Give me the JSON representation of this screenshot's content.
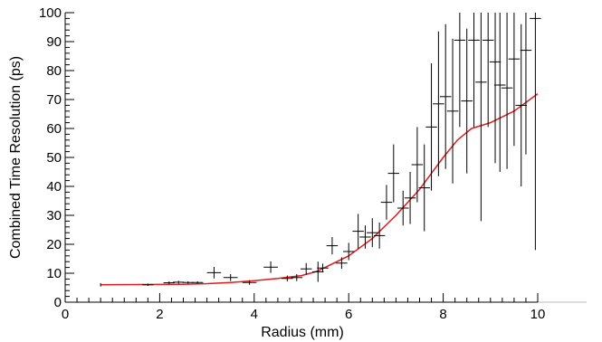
{
  "chart_data": {
    "type": "scatter",
    "title": "",
    "xlabel": "Radius (mm)",
    "ylabel": "Combined Time Resolution (ps)",
    "xlim": [
      0,
      10
    ],
    "ylim": [
      0,
      100
    ],
    "x_ticks": [
      0,
      2,
      4,
      6,
      8,
      10
    ],
    "y_ticks": [
      0,
      10,
      20,
      30,
      40,
      50,
      60,
      70,
      80,
      90,
      100
    ],
    "grid": false,
    "legend": "none",
    "colors": {
      "data": "#000000",
      "fit": "#e41a1c",
      "axis": "#000000"
    },
    "series": [
      {
        "style": "points-with-error-bars",
        "points": [
          {
            "x": 0.75,
            "y": 6.0,
            "xerr": 0.0,
            "yerr": 0.6
          },
          {
            "x": 1.75,
            "y": 6.0,
            "xerr": 0.12,
            "yerr": 0.4
          },
          {
            "x": 2.2,
            "y": 6.7,
            "xerr": 0.12,
            "yerr": 0.5
          },
          {
            "x": 2.4,
            "y": 6.9,
            "xerr": 0.12,
            "yerr": 0.5
          },
          {
            "x": 2.6,
            "y": 6.8,
            "xerr": 0.12,
            "yerr": 0.4
          },
          {
            "x": 2.8,
            "y": 6.8,
            "xerr": 0.12,
            "yerr": 0.4
          },
          {
            "x": 3.15,
            "y": 10.2,
            "xerr": 0.15,
            "yerr": 2.0
          },
          {
            "x": 3.5,
            "y": 8.5,
            "xerr": 0.15,
            "yerr": 1.2
          },
          {
            "x": 3.9,
            "y": 6.8,
            "xerr": 0.15,
            "yerr": 0.8
          },
          {
            "x": 4.35,
            "y": 12.1,
            "xerr": 0.15,
            "yerr": 2.0
          },
          {
            "x": 4.7,
            "y": 8.2,
            "xerr": 0.12,
            "yerr": 1.0
          },
          {
            "x": 4.9,
            "y": 8.5,
            "xerr": 0.12,
            "yerr": 1.2
          },
          {
            "x": 5.1,
            "y": 11.5,
            "xerr": 0.12,
            "yerr": 2.0
          },
          {
            "x": 5.35,
            "y": 10.5,
            "xerr": 0.12,
            "yerr": 3.5
          },
          {
            "x": 5.45,
            "y": 11.8,
            "xerr": 0.12,
            "yerr": 1.5
          },
          {
            "x": 5.65,
            "y": 19.5,
            "xerr": 0.12,
            "yerr": 3.0
          },
          {
            "x": 5.85,
            "y": 13.5,
            "xerr": 0.12,
            "yerr": 2.0
          },
          {
            "x": 6.0,
            "y": 17.5,
            "xerr": 0.12,
            "yerr": 3.0
          },
          {
            "x": 6.2,
            "y": 24.5,
            "xerr": 0.12,
            "yerr": 6.0
          },
          {
            "x": 6.35,
            "y": 22.5,
            "xerr": 0.12,
            "yerr": 4.0
          },
          {
            "x": 6.5,
            "y": 24.0,
            "xerr": 0.12,
            "yerr": 5.0
          },
          {
            "x": 6.65,
            "y": 23.0,
            "xerr": 0.12,
            "yerr": 4.5
          },
          {
            "x": 6.8,
            "y": 34.5,
            "xerr": 0.12,
            "yerr": 6.0
          },
          {
            "x": 6.95,
            "y": 44.5,
            "xerr": 0.12,
            "yerr": 10.0
          },
          {
            "x": 7.15,
            "y": 32.5,
            "xerr": 0.12,
            "yerr": 6.0
          },
          {
            "x": 7.3,
            "y": 36.0,
            "xerr": 0.12,
            "yerr": 9.0
          },
          {
            "x": 7.45,
            "y": 47.5,
            "xerr": 0.12,
            "yerr": 13.0
          },
          {
            "x": 7.6,
            "y": 39.5,
            "xerr": 0.12,
            "yerr": 15.0
          },
          {
            "x": 7.75,
            "y": 60.5,
            "xerr": 0.12,
            "yerr": 22.0
          },
          {
            "x": 7.9,
            "y": 68.5,
            "xerr": 0.12,
            "yerr": 25.0
          },
          {
            "x": 8.05,
            "y": 71.0,
            "xerr": 0.12,
            "yerr": 25.0
          },
          {
            "x": 8.2,
            "y": 66.0,
            "xerr": 0.12,
            "yerr": 25.0
          },
          {
            "x": 8.35,
            "y": 90.5,
            "xerr": 0.12,
            "yerr": 30.0
          },
          {
            "x": 8.5,
            "y": 69.5,
            "xerr": 0.12,
            "yerr": 25.0
          },
          {
            "x": 8.65,
            "y": 90.5,
            "xerr": 0.12,
            "yerr": 30.0
          },
          {
            "x": 8.8,
            "y": 76.0,
            "xerr": 0.12,
            "yerr": 48.0
          },
          {
            "x": 8.95,
            "y": 90.5,
            "xerr": 0.12,
            "yerr": 30.0
          },
          {
            "x": 9.1,
            "y": 83.0,
            "xerr": 0.12,
            "yerr": 35.0
          },
          {
            "x": 9.2,
            "y": 75.0,
            "xerr": 0.12,
            "yerr": 30.0
          },
          {
            "x": 9.35,
            "y": 74.0,
            "xerr": 0.12,
            "yerr": 28.0
          },
          {
            "x": 9.5,
            "y": 84.0,
            "xerr": 0.12,
            "yerr": 30.0
          },
          {
            "x": 9.65,
            "y": 68.0,
            "xerr": 0.12,
            "yerr": 28.0
          },
          {
            "x": 9.75,
            "y": 87.0,
            "xerr": 0.12,
            "yerr": 36.0
          },
          {
            "x": 9.95,
            "y": 98.0,
            "xerr": 0.12,
            "yerr": 80.0
          }
        ]
      },
      {
        "style": "line",
        "points": [
          {
            "x": 0.75,
            "y": 6.0
          },
          {
            "x": 1.5,
            "y": 6.1
          },
          {
            "x": 2.5,
            "y": 6.2
          },
          {
            "x": 3.0,
            "y": 6.4
          },
          {
            "x": 3.5,
            "y": 6.8
          },
          {
            "x": 4.0,
            "y": 7.4
          },
          {
            "x": 4.5,
            "y": 8.2
          },
          {
            "x": 5.0,
            "y": 9.2
          },
          {
            "x": 5.3,
            "y": 10.5
          },
          {
            "x": 5.5,
            "y": 12.0
          },
          {
            "x": 6.0,
            "y": 16.0
          },
          {
            "x": 6.5,
            "y": 22.0
          },
          {
            "x": 7.0,
            "y": 30.0
          },
          {
            "x": 7.5,
            "y": 39.0
          },
          {
            "x": 8.0,
            "y": 50.0
          },
          {
            "x": 8.3,
            "y": 56.0
          },
          {
            "x": 8.6,
            "y": 60.0
          },
          {
            "x": 9.0,
            "y": 62.0
          },
          {
            "x": 9.5,
            "y": 66.0
          },
          {
            "x": 10.0,
            "y": 72.0
          }
        ]
      }
    ]
  }
}
